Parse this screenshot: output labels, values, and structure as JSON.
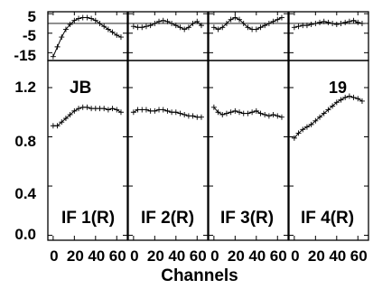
{
  "chart_data": {
    "type": "line",
    "xlabel": "Channels",
    "x_ticks": [
      0,
      20,
      40,
      60
    ],
    "x_tick_labels": [
      "0",
      "20",
      "40",
      "60"
    ],
    "xlim": [
      -5,
      70
    ],
    "phase_panel": {
      "ylim": [
        -19,
        6
      ],
      "yticks": [
        5,
        -5,
        -15
      ],
      "ytick_labels": [
        "5",
        "-5",
        "-15"
      ],
      "reference_line": 0
    },
    "amp_panel": {
      "ylim": [
        -0.04,
        1.42
      ],
      "yticks": [
        1.2,
        0.8,
        0.4,
        0.0
      ],
      "ytick_labels": [
        "1.2",
        "0.8",
        "0.4",
        "0.0"
      ]
    },
    "station_label": "JB",
    "scan_label": "19",
    "panels": [
      {
        "name": "IF 1(R)",
        "phase": [
          [
            0,
            -17
          ],
          [
            4,
            -12
          ],
          [
            8,
            -7
          ],
          [
            12,
            -3
          ],
          [
            16,
            -0.5
          ],
          [
            20,
            1.5
          ],
          [
            24,
            2.5
          ],
          [
            28,
            3
          ],
          [
            32,
            3
          ],
          [
            36,
            2.5
          ],
          [
            40,
            1.5
          ],
          [
            44,
            0
          ],
          [
            48,
            -1.5
          ],
          [
            52,
            -3
          ],
          [
            56,
            -4.5
          ],
          [
            60,
            -6
          ],
          [
            64,
            -7
          ]
        ],
        "amp": [
          [
            0,
            0.89
          ],
          [
            4,
            0.89
          ],
          [
            8,
            0.92
          ],
          [
            12,
            0.95
          ],
          [
            16,
            0.98
          ],
          [
            20,
            1.01
          ],
          [
            24,
            1.03
          ],
          [
            28,
            1.04
          ],
          [
            32,
            1.04
          ],
          [
            36,
            1.03
          ],
          [
            40,
            1.03
          ],
          [
            44,
            1.03
          ],
          [
            48,
            1.03
          ],
          [
            52,
            1.02
          ],
          [
            56,
            1.03
          ],
          [
            60,
            1.02
          ],
          [
            64,
            1.0
          ]
        ]
      },
      {
        "name": "IF 2(R)",
        "phase": [
          [
            0,
            -1.5
          ],
          [
            4,
            -2
          ],
          [
            8,
            -2
          ],
          [
            12,
            -1.5
          ],
          [
            16,
            -1
          ],
          [
            20,
            0
          ],
          [
            24,
            1
          ],
          [
            28,
            1.5
          ],
          [
            32,
            1
          ],
          [
            36,
            0
          ],
          [
            40,
            -1
          ],
          [
            44,
            -2
          ],
          [
            48,
            -3
          ],
          [
            52,
            -2
          ],
          [
            56,
            0
          ],
          [
            60,
            1
          ],
          [
            64,
            -1
          ]
        ],
        "amp": [
          [
            0,
            1.0
          ],
          [
            4,
            1.02
          ],
          [
            8,
            1.02
          ],
          [
            12,
            1.02
          ],
          [
            16,
            1.01
          ],
          [
            20,
            1.01
          ],
          [
            24,
            1.02
          ],
          [
            28,
            1.02
          ],
          [
            32,
            1.01
          ],
          [
            36,
            1.0
          ],
          [
            40,
            1.0
          ],
          [
            44,
            0.99
          ],
          [
            48,
            0.98
          ],
          [
            52,
            0.97
          ],
          [
            56,
            0.97
          ],
          [
            60,
            0.96
          ],
          [
            64,
            0.96
          ]
        ]
      },
      {
        "name": "IF 3(R)",
        "phase": [
          [
            0,
            -2
          ],
          [
            4,
            -3
          ],
          [
            8,
            -2
          ],
          [
            12,
            0
          ],
          [
            16,
            2
          ],
          [
            20,
            3
          ],
          [
            24,
            2
          ],
          [
            28,
            0
          ],
          [
            32,
            -2
          ],
          [
            36,
            -3
          ],
          [
            40,
            -3
          ],
          [
            44,
            -2
          ],
          [
            48,
            -1
          ],
          [
            52,
            0
          ],
          [
            56,
            1
          ],
          [
            60,
            2
          ],
          [
            64,
            3
          ]
        ],
        "amp": [
          [
            0,
            1.04
          ],
          [
            4,
            1.0
          ],
          [
            8,
            0.98
          ],
          [
            12,
            0.99
          ],
          [
            16,
            1.0
          ],
          [
            20,
            1.01
          ],
          [
            24,
            1.0
          ],
          [
            28,
            0.99
          ],
          [
            32,
            0.99
          ],
          [
            36,
            1.0
          ],
          [
            40,
            1.01
          ],
          [
            44,
            0.99
          ],
          [
            48,
            0.98
          ],
          [
            52,
            0.97
          ],
          [
            56,
            0.98
          ],
          [
            60,
            0.97
          ],
          [
            64,
            0.96
          ]
        ]
      },
      {
        "name": "IF 4(R)",
        "phase": [
          [
            0,
            -2
          ],
          [
            4,
            -1.5
          ],
          [
            8,
            -1
          ],
          [
            12,
            -1
          ],
          [
            16,
            -0.5
          ],
          [
            20,
            0
          ],
          [
            24,
            0.5
          ],
          [
            28,
            1
          ],
          [
            32,
            0.5
          ],
          [
            36,
            0
          ],
          [
            40,
            -0.5
          ],
          [
            44,
            0
          ],
          [
            48,
            0.5
          ],
          [
            52,
            1
          ],
          [
            56,
            1.5
          ],
          [
            60,
            0.5
          ],
          [
            64,
            0
          ]
        ],
        "amp": [
          [
            0,
            0.79
          ],
          [
            4,
            0.83
          ],
          [
            8,
            0.86
          ],
          [
            12,
            0.88
          ],
          [
            16,
            0.9
          ],
          [
            20,
            0.93
          ],
          [
            24,
            0.96
          ],
          [
            28,
            0.99
          ],
          [
            32,
            1.02
          ],
          [
            36,
            1.05
          ],
          [
            40,
            1.08
          ],
          [
            44,
            1.1
          ],
          [
            48,
            1.12
          ],
          [
            52,
            1.13
          ],
          [
            56,
            1.12
          ],
          [
            60,
            1.11
          ],
          [
            64,
            1.09
          ]
        ]
      }
    ]
  }
}
